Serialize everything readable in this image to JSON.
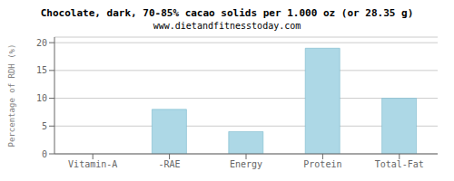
{
  "chart_data": {
    "type": "bar",
    "title": "Chocolate, dark, 70-85% cacao solids per 1.000 oz (or 28.35 g)",
    "subtitle": "www.dietandfitnesstoday.com",
    "categories": [
      "Vitamin-A",
      "-RAE",
      "Energy",
      "Protein",
      "Total-Fat"
    ],
    "values": [
      0,
      8,
      4,
      19,
      10
    ],
    "color": "#add8e6",
    "ylabel": "Percentage of RDH (%)",
    "ylim": [
      0,
      21
    ],
    "yticks": [
      0,
      5,
      10,
      15,
      20
    ],
    "grid": true
  }
}
